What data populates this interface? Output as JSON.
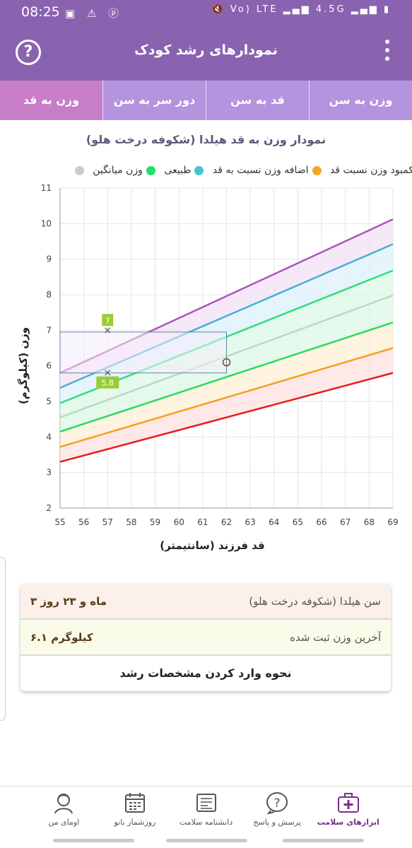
{
  "status_bar": {
    "time": "08:25",
    "network": "Vo) LTE",
    "signal2": "4.5G"
  },
  "app_bar": {
    "title": "نمودارهای رشد کودک",
    "help_symbol": "?"
  },
  "tabs": [
    {
      "label": "وزن به سن",
      "active": false
    },
    {
      "label": "قد به سن",
      "active": false
    },
    {
      "label": "دور سر به سن",
      "active": false
    },
    {
      "label": "وزن به قد",
      "active": true
    }
  ],
  "chart_data": {
    "type": "line",
    "title": "نمودار وزن به قد هیلدا (شکوفه درخت هلو)",
    "xlabel": "قد فرزند (سانتیمتر)",
    "ylabel": "وزن (کیلوگرم)",
    "xlim": [
      55,
      69
    ],
    "ylim": [
      2,
      11
    ],
    "xticks": [
      55,
      56,
      57,
      58,
      59,
      60,
      61,
      62,
      63,
      64,
      65,
      66,
      67,
      68,
      69
    ],
    "yticks": [
      2,
      3,
      4,
      5,
      6,
      7,
      8,
      9,
      10,
      11
    ],
    "grid": true,
    "legend_position": "top",
    "legend": [
      {
        "label": "کمبود وزن نسبت قد",
        "color": "#c070d0"
      },
      {
        "label": "اضافه وزن نسبت به قد",
        "color": "#f5a623"
      },
      {
        "label": "طبیعی",
        "color": "#4ac0d8"
      },
      {
        "label": "وزن میانگین",
        "color": "#20e070"
      },
      {
        "label": "",
        "color": "#cccccc"
      }
    ],
    "x": [
      55,
      69
    ],
    "series": [
      {
        "color": "#a855b8",
        "values": [
          5.8,
          10.12
        ]
      },
      {
        "color": "#4aafd0",
        "values": [
          5.38,
          9.42
        ]
      },
      {
        "color": "#2ee080",
        "values": [
          4.95,
          8.68
        ]
      },
      {
        "color": "#bcd9c0",
        "values": [
          4.55,
          7.98
        ]
      },
      {
        "color": "#2ed860",
        "values": [
          4.15,
          7.22
        ]
      },
      {
        "color": "#f5a020",
        "values": [
          3.72,
          6.5
        ]
      },
      {
        "color": "#e02020",
        "values": [
          3.3,
          5.8
        ]
      }
    ],
    "bands": [
      {
        "color": "#f2e2f5"
      },
      {
        "color": "#def2fb"
      },
      {
        "color": "#dcf8e5"
      },
      {
        "color": "#dcf8e5"
      },
      {
        "color": "#fdf0d5"
      },
      {
        "color": "#fde0e0"
      }
    ],
    "markers": [
      {
        "x": 57,
        "y": 7,
        "label": "7",
        "color": "#9acd32"
      },
      {
        "x": 57,
        "y": 5.8,
        "label": "5.8",
        "color": "#9acd32"
      }
    ],
    "range_box": {
      "x": [
        55,
        62
      ],
      "y": [
        5.8,
        6.95
      ]
    },
    "current_point": {
      "x": 62,
      "y": 6.1
    }
  },
  "info": {
    "age_label": "سن هیلدا (شکوفه درخت هلو)",
    "age_value": "۳ ماه و ۲۳ روز",
    "weight_label": "آخرین وزن ثبت شده",
    "weight_value": "۶.۱ کیلوگرم",
    "howto_label": "نحوه وارد کردن مشخصات رشد"
  },
  "bottom_nav": [
    {
      "label": "ابزارهای سلامت",
      "active": true
    },
    {
      "label": "پرسش و پاسخ",
      "active": false
    },
    {
      "label": "دانشنامه سلامت",
      "active": false
    },
    {
      "label": "روزشمار بانو",
      "active": false
    },
    {
      "label": "اومای من",
      "active": false
    }
  ]
}
